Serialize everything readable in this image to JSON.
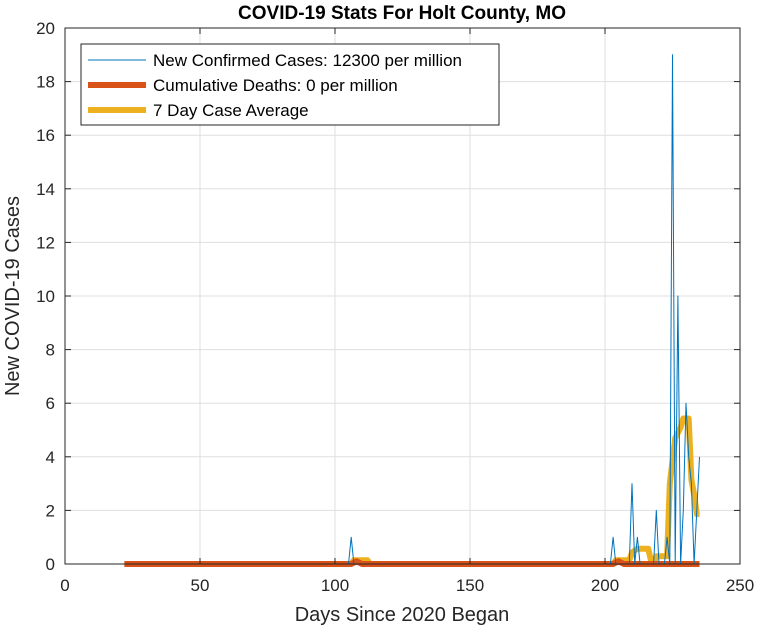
{
  "chart_data": {
    "type": "line",
    "title": "COVID-19 Stats For Holt County, MO",
    "xlabel": "Days Since 2020 Began",
    "ylabel": "New COVID-19 Cases",
    "xlim": [
      0,
      250
    ],
    "ylim": [
      0,
      20
    ],
    "xticks": [
      0,
      50,
      100,
      150,
      200,
      250
    ],
    "yticks": [
      0,
      2,
      4,
      6,
      8,
      10,
      12,
      14,
      16,
      18,
      20
    ],
    "grid": true,
    "legend_position": "top-left",
    "series": [
      {
        "name": "New Confirmed Cases: 12300 per million",
        "color": "#0072BD",
        "line_width": "thin",
        "points": [
          [
            22,
            0
          ],
          [
            105,
            0
          ],
          [
            106,
            1
          ],
          [
            107,
            0
          ],
          [
            202,
            0
          ],
          [
            203,
            1
          ],
          [
            204,
            0
          ],
          [
            209,
            0
          ],
          [
            210,
            3
          ],
          [
            211,
            0
          ],
          [
            212,
            1
          ],
          [
            213,
            0
          ],
          [
            218,
            0
          ],
          [
            219,
            2
          ],
          [
            220,
            0
          ],
          [
            222,
            0
          ],
          [
            223,
            1
          ],
          [
            224,
            0
          ],
          [
            225,
            19
          ],
          [
            226,
            0
          ],
          [
            227,
            10
          ],
          [
            228,
            0
          ],
          [
            229,
            2
          ],
          [
            230,
            6
          ],
          [
            231,
            4
          ],
          [
            232,
            3
          ],
          [
            233,
            0
          ],
          [
            234,
            2
          ],
          [
            235,
            4
          ]
        ]
      },
      {
        "name": "Cumulative Deaths: 0 per million",
        "color": "#D95319",
        "line_width": "thick",
        "points": [
          [
            22,
            0
          ],
          [
            106,
            0
          ],
          [
            108,
            0.1
          ],
          [
            110,
            0
          ],
          [
            203,
            0
          ],
          [
            205,
            0.1
          ],
          [
            207,
            0
          ],
          [
            235,
            0
          ]
        ]
      },
      {
        "name": "7 Day Case Average",
        "color": "#EDB120",
        "line_width": "thick",
        "points": [
          [
            22,
            0
          ],
          [
            106,
            0
          ],
          [
            107,
            0.14
          ],
          [
            112,
            0.14
          ],
          [
            113,
            0
          ],
          [
            203,
            0
          ],
          [
            204,
            0.14
          ],
          [
            209,
            0.14
          ],
          [
            210,
            0.43
          ],
          [
            212,
            0.57
          ],
          [
            216,
            0.57
          ],
          [
            217,
            0.14
          ],
          [
            218,
            0
          ],
          [
            219,
            0.29
          ],
          [
            223,
            0.29
          ],
          [
            224,
            3
          ],
          [
            226,
            4.7
          ],
          [
            228,
            5.1
          ],
          [
            229,
            5.43
          ],
          [
            231,
            5.43
          ],
          [
            232,
            3.14
          ],
          [
            233,
            2.6
          ],
          [
            234,
            1.86
          ],
          [
            235,
            1.86
          ]
        ]
      }
    ]
  }
}
